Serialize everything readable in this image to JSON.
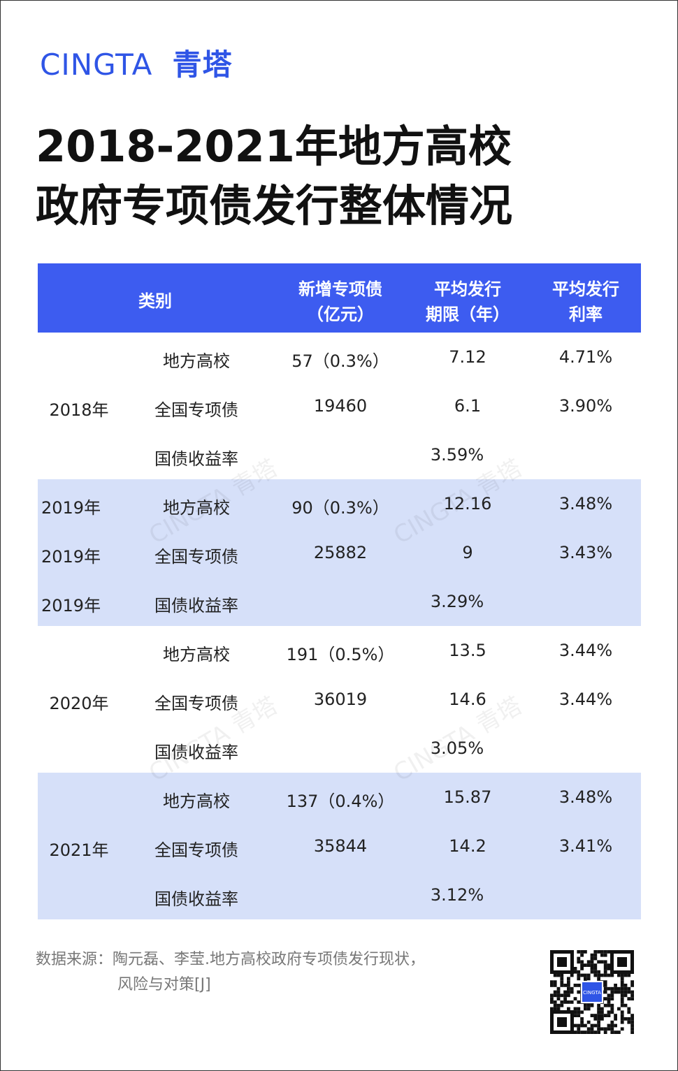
{
  "brand": {
    "latin": "CINGTA",
    "cjk": "青塔"
  },
  "title": [
    "2018-2021年地方高校",
    "政府专项债发行整体情况"
  ],
  "watermark": "CINGTA 青塔",
  "table": {
    "header": [
      [
        "类别"
      ],
      [
        "新增专项债",
        "（亿元）"
      ],
      [
        "平均发行",
        "期限（年）"
      ],
      [
        "平均发行",
        "利率"
      ]
    ],
    "groups": [
      {
        "year": "2018年",
        "rows": [
          {
            "category": "地方高校",
            "new_debt": "57（0.3%）",
            "term": "7.12",
            "rate": "4.71%"
          },
          {
            "category": "全国专项债",
            "new_debt": "19460",
            "term": "6.1",
            "rate": "3.90%"
          },
          {
            "category": "国债收益率",
            "yield": "3.59%"
          }
        ]
      },
      {
        "row_years": [
          "2019年",
          "2019年",
          "2019年"
        ],
        "rows": [
          {
            "category": "地方高校",
            "new_debt": "90（0.3%）",
            "term": "12.16",
            "rate": "3.48%"
          },
          {
            "category": "全国专项债",
            "new_debt": "25882",
            "term": "9",
            "rate": "3.43%"
          },
          {
            "category": "国债收益率",
            "yield": "3.29%"
          }
        ]
      },
      {
        "year": "2020年",
        "rows": [
          {
            "category": "地方高校",
            "new_debt": "191（0.5%）",
            "term": "13.5",
            "rate": "3.44%"
          },
          {
            "category": "全国专项债",
            "new_debt": "36019",
            "term": "14.6",
            "rate": "3.44%"
          },
          {
            "category": "国债收益率",
            "yield": "3.05%"
          }
        ]
      },
      {
        "year": "2021年",
        "rows": [
          {
            "category": "地方高校",
            "new_debt": "137（0.4%）",
            "term": "15.87",
            "rate": "3.48%"
          },
          {
            "category": "全国专项债",
            "new_debt": "35844",
            "term": "14.2",
            "rate": "3.41%"
          },
          {
            "category": "国债收益率",
            "yield": "3.12%"
          }
        ]
      }
    ]
  },
  "source": [
    "数据来源：陶元磊、李莹.地方高校政府专项债发行现状，",
    "风险与对策[J]"
  ],
  "qr_label": "CINGTA"
}
